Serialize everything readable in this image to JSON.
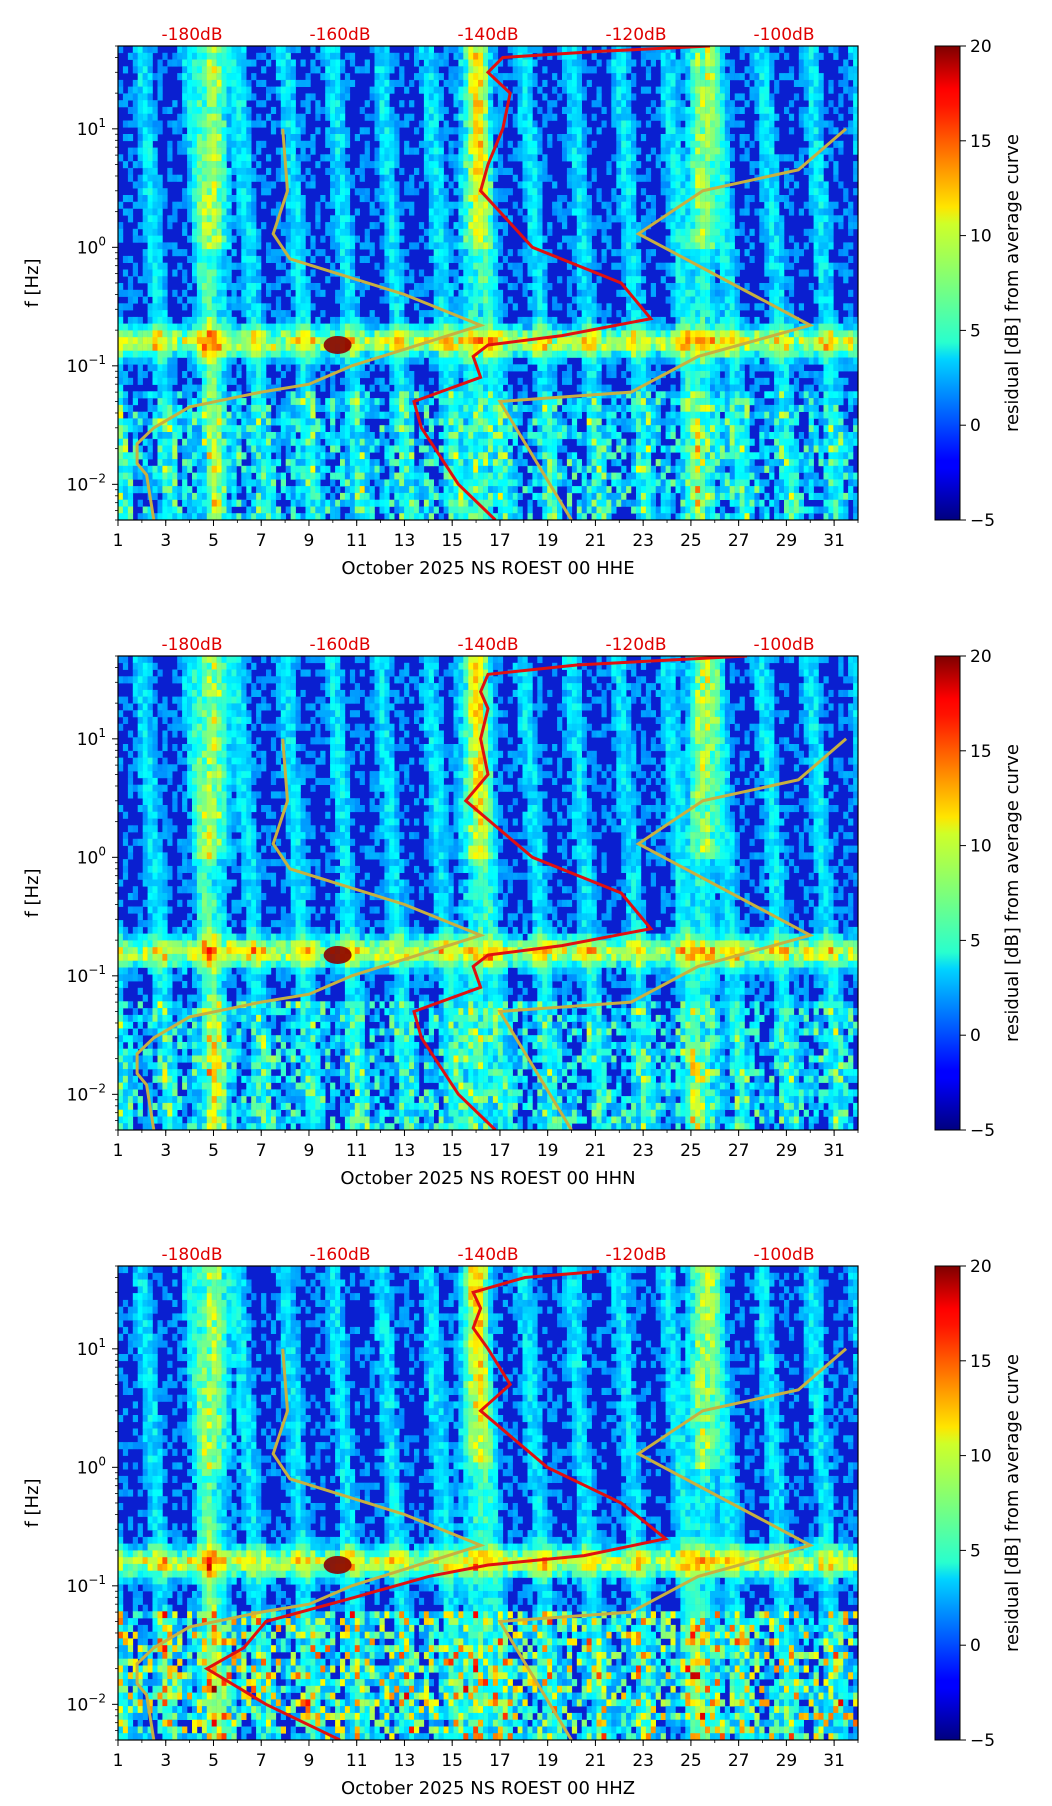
{
  "chart_data": [
    {
      "type": "heatmap",
      "xlabel": "October 2025 NS ROEST 00 HHE",
      "ylabel": "f [Hz]",
      "x_ticks": [
        "1",
        "3",
        "5",
        "7",
        "9",
        "11",
        "13",
        "15",
        "17",
        "19",
        "21",
        "23",
        "25",
        "27",
        "29",
        "31"
      ],
      "y_ticks": [
        {
          "base": "10",
          "exp": "1"
        },
        {
          "base": "10",
          "exp": "0"
        },
        {
          "base": "10",
          "exp": "−1"
        },
        {
          "base": "10",
          "exp": "−2"
        }
      ],
      "top_db_labels": [
        "-180dB",
        "-160dB",
        "-140dB",
        "-120dB",
        "-100dB"
      ],
      "colorbar_label": "residual [dB] from average curve",
      "colorbar_ticks": [
        "20",
        "15",
        "10",
        "5",
        "0",
        "−5"
      ],
      "colorbar_range": [
        -5,
        20
      ],
      "xlim": [
        1,
        32
      ],
      "ylim_hz": [
        0.005,
        50
      ],
      "top_db_range": [
        -190,
        -90
      ],
      "average_curve_db": [
        [
          50,
          -110
        ],
        [
          45,
          -125
        ],
        [
          40,
          -138
        ],
        [
          30,
          -140
        ],
        [
          20,
          -137
        ],
        [
          10,
          -138
        ],
        [
          5,
          -140
        ],
        [
          3,
          -141
        ],
        [
          1,
          -134
        ],
        [
          0.5,
          -122
        ],
        [
          0.25,
          -118
        ],
        [
          0.18,
          -130
        ],
        [
          0.15,
          -140
        ],
        [
          0.12,
          -142
        ],
        [
          0.08,
          -141
        ],
        [
          0.05,
          -150
        ],
        [
          0.03,
          -149
        ],
        [
          0.01,
          -144
        ],
        [
          0.005,
          -139
        ]
      ],
      "model_curve": [
        [
          7.9,
          10
        ],
        [
          8.1,
          3
        ],
        [
          7.5,
          1.3
        ],
        [
          8.2,
          0.8
        ],
        [
          13,
          0.4
        ],
        [
          16.2,
          0.22
        ],
        [
          10.8,
          0.1
        ],
        [
          9,
          0.07
        ],
        [
          7,
          0.06
        ],
        [
          4,
          0.045
        ],
        [
          2.5,
          0.03
        ],
        [
          1.8,
          0.022
        ],
        [
          1.8,
          0.015
        ],
        [
          2.2,
          0.012
        ],
        [
          2.5,
          0.005
        ]
      ],
      "model_curve_right": [
        [
          31.5,
          10
        ],
        [
          29.5,
          4.5
        ],
        [
          25.5,
          3
        ],
        [
          22.8,
          1.3
        ],
        [
          30,
          0.22
        ],
        [
          25.3,
          0.12
        ],
        [
          22.5,
          0.06
        ],
        [
          17,
          0.05
        ],
        [
          20,
          0.005
        ]
      ]
    },
    {
      "type": "heatmap",
      "xlabel": "October 2025 NS ROEST 00 HHN",
      "ylabel": "f [Hz]",
      "x_ticks": [
        "1",
        "3",
        "5",
        "7",
        "9",
        "11",
        "13",
        "15",
        "17",
        "19",
        "21",
        "23",
        "25",
        "27",
        "29",
        "31"
      ],
      "y_ticks": [
        {
          "base": "10",
          "exp": "1"
        },
        {
          "base": "10",
          "exp": "0"
        },
        {
          "base": "10",
          "exp": "−1"
        },
        {
          "base": "10",
          "exp": "−2"
        }
      ],
      "top_db_labels": [
        "-180dB",
        "-160dB",
        "-140dB",
        "-120dB",
        "-100dB"
      ],
      "colorbar_label": "residual [dB] from average curve",
      "colorbar_ticks": [
        "20",
        "15",
        "10",
        "5",
        "0",
        "−5"
      ],
      "colorbar_range": [
        -5,
        20
      ],
      "xlim": [
        1,
        32
      ],
      "ylim_hz": [
        0.005,
        50
      ],
      "top_db_range": [
        -190,
        -90
      ],
      "average_curve_db": [
        [
          50,
          -105
        ],
        [
          42,
          -128
        ],
        [
          35,
          -140
        ],
        [
          25,
          -141
        ],
        [
          18,
          -140
        ],
        [
          10,
          -141
        ],
        [
          5,
          -140
        ],
        [
          3,
          -143
        ],
        [
          1,
          -134
        ],
        [
          0.5,
          -122
        ],
        [
          0.25,
          -118
        ],
        [
          0.18,
          -130
        ],
        [
          0.15,
          -140
        ],
        [
          0.12,
          -142
        ],
        [
          0.08,
          -141
        ],
        [
          0.05,
          -150
        ],
        [
          0.03,
          -149
        ],
        [
          0.01,
          -144
        ],
        [
          0.005,
          -139
        ]
      ],
      "model_curve": [
        [
          7.9,
          10
        ],
        [
          8.1,
          3
        ],
        [
          7.5,
          1.3
        ],
        [
          8.2,
          0.8
        ],
        [
          13,
          0.4
        ],
        [
          16.2,
          0.22
        ],
        [
          10.8,
          0.1
        ],
        [
          9,
          0.07
        ],
        [
          7,
          0.06
        ],
        [
          4,
          0.045
        ],
        [
          2.5,
          0.03
        ],
        [
          1.8,
          0.022
        ],
        [
          1.8,
          0.015
        ],
        [
          2.2,
          0.012
        ],
        [
          2.5,
          0.005
        ]
      ],
      "model_curve_right": [
        [
          31.5,
          10
        ],
        [
          29.5,
          4.5
        ],
        [
          25.5,
          3
        ],
        [
          22.8,
          1.3
        ],
        [
          30,
          0.22
        ],
        [
          25.3,
          0.12
        ],
        [
          22.5,
          0.06
        ],
        [
          17,
          0.05
        ],
        [
          20,
          0.005
        ]
      ]
    },
    {
      "type": "heatmap",
      "xlabel": "October 2025 NS ROEST 00 HHZ",
      "ylabel": "f [Hz]",
      "x_ticks": [
        "1",
        "3",
        "5",
        "7",
        "9",
        "11",
        "13",
        "15",
        "17",
        "19",
        "21",
        "23",
        "25",
        "27",
        "29",
        "31"
      ],
      "y_ticks": [
        {
          "base": "10",
          "exp": "1"
        },
        {
          "base": "10",
          "exp": "0"
        },
        {
          "base": "10",
          "exp": "−1"
        },
        {
          "base": "10",
          "exp": "−2"
        }
      ],
      "top_db_labels": [
        "-180dB",
        "-160dB",
        "-140dB",
        "-120dB",
        "-100dB"
      ],
      "colorbar_label": "residual [dB] from average curve",
      "colorbar_ticks": [
        "20",
        "15",
        "10",
        "5",
        "0",
        "−5"
      ],
      "colorbar_range": [
        -5,
        20
      ],
      "xlim": [
        1,
        32
      ],
      "ylim_hz": [
        0.005,
        50
      ],
      "top_db_range": [
        -190,
        -90
      ],
      "average_curve_db": [
        [
          45,
          -125
        ],
        [
          40,
          -135
        ],
        [
          30,
          -142
        ],
        [
          22,
          -141
        ],
        [
          15,
          -142
        ],
        [
          10,
          -140
        ],
        [
          5,
          -137
        ],
        [
          3,
          -141
        ],
        [
          1,
          -132
        ],
        [
          0.5,
          -122
        ],
        [
          0.25,
          -116
        ],
        [
          0.18,
          -127
        ],
        [
          0.15,
          -140
        ],
        [
          0.12,
          -148
        ],
        [
          0.08,
          -158
        ],
        [
          0.05,
          -170
        ],
        [
          0.03,
          -173
        ],
        [
          0.02,
          -178
        ],
        [
          0.01,
          -170
        ],
        [
          0.005,
          -160
        ]
      ],
      "model_curve": [
        [
          7.9,
          10
        ],
        [
          8.1,
          3
        ],
        [
          7.5,
          1.3
        ],
        [
          8.2,
          0.8
        ],
        [
          13,
          0.4
        ],
        [
          16.2,
          0.22
        ],
        [
          10.8,
          0.1
        ],
        [
          9,
          0.07
        ],
        [
          7,
          0.06
        ],
        [
          4,
          0.045
        ],
        [
          2.5,
          0.03
        ],
        [
          1.8,
          0.022
        ],
        [
          1.8,
          0.015
        ],
        [
          2.2,
          0.012
        ],
        [
          2.5,
          0.005
        ]
      ],
      "model_curve_right": [
        [
          31.5,
          10
        ],
        [
          29.5,
          4.5
        ],
        [
          25.5,
          3
        ],
        [
          22.8,
          1.3
        ],
        [
          30,
          0.22
        ],
        [
          25.3,
          0.12
        ],
        [
          22.5,
          0.06
        ],
        [
          17,
          0.05
        ],
        [
          20,
          0.005
        ]
      ]
    }
  ],
  "colors": {
    "average_curve": "#e01010",
    "model_curve": "#c8b040",
    "db_label": "#e00000"
  }
}
